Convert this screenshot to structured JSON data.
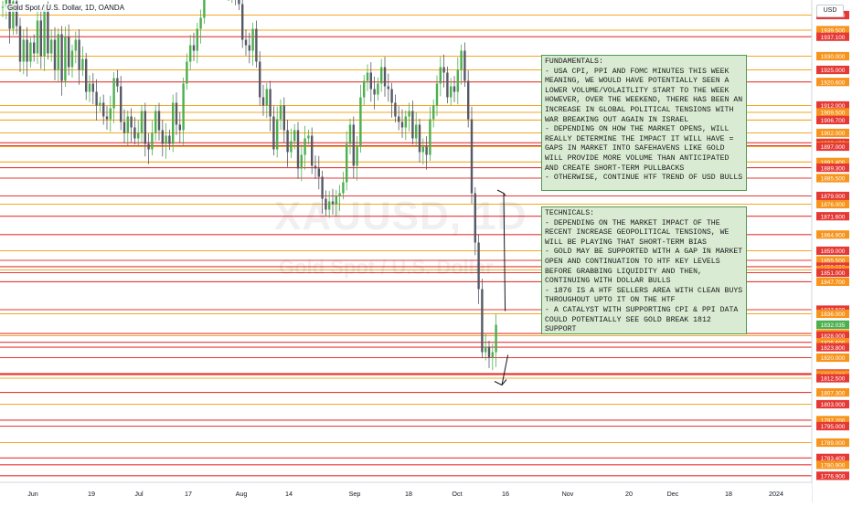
{
  "header": {
    "title": "Gold Spot / U.S. Dollar, 1D, OANDA",
    "currency": "USD"
  },
  "watermark": {
    "main": "XAUUSD, 1D",
    "sub": "Gold Spot / U.S. Dollar"
  },
  "colors": {
    "up": "#4caf50",
    "down": "#555a66",
    "level_orange": "#f5a623",
    "level_red": "#e53935",
    "price_tag_orange": "#f7941d",
    "current_price_tag": "#4caf50",
    "note_bg": "#d9ebd3",
    "note_border": "#4f9a52"
  },
  "notes": [
    {
      "lines": [
        "FUNDAMENTALS:",
        "- USA CPI, PPI AND FOMC MINUTES THIS WEEK MEANING, WE WOULD HAVE POTENTIALLY SEEN A LOWER VOLUME/VOLAITLITY START TO THE WEEK HOWEVER, OVER THE WEEKEND, THERE HAS BEEN AN INCREASE IN GLOBAL POLITICAL TENSIONS WITH WAR BREAKING OUT AGAIN IN ISRAEL",
        "- DEPENDING ON HOW THE MARKET OPENS, WILL REALLY DETERMINE THE IMPACT IT WILL HAVE = GAPS IN MARKET INTO SAFEHAVENS LIKE GOLD WILL PROVIDE MORE VOLUME THAN ANTICIPATED AND CREATE SHORT-TERM PULLBACKS",
        "- OTHERWISE, CONTINUE HTF TREND OF USD BULLS"
      ]
    },
    {
      "lines": [
        "TECHNICALS:",
        "- DEPENDING ON THE MARKET IMPACT OF THE RECENT INCREASE GEOPOLITICAL TENSIONS, WE WILL BE PLAYING THAT SHORT-TERM BIAS",
        "- GOLD MAY BE SUPPORTED WITH A GAP IN MARKET OPEN AND CONTINUATION TO HTF KEY LEVELS BEFORE GRABBING LIQUIDITY AND THEN, CONTINUING WITH DOLLAR BULLS",
        "- 1876 IS A HTF SELLERS AREA WITH CLEAN BUYS THROUGHOUT UPTO IT ON THE HTF",
        "- A CATALYST WITH SUPPORTING CPI & PPI DATA COULD POTENTIALLY SEE GOLD BREAK 1812 SUPPORT"
      ]
    }
  ],
  "chart_data": {
    "type": "candlestick",
    "title": "Gold Spot / U.S. Dollar, 1D, OANDA",
    "ylim": [
      1774.5,
      1950.5
    ],
    "y_tick_labels": [
      "1945.000",
      "1939.500",
      "1937.100",
      "1930.000",
      "1925.000",
      "1920.600",
      "1912.000",
      "1909.500",
      "1906.700",
      "1902.000",
      "1898.400",
      "1897.300",
      "1897.000",
      "1891.400",
      "1889.300",
      "1885.500",
      "1879.000",
      "1876.000",
      "1871.600",
      "1864.900",
      "1859.000",
      "1855.500",
      "1853.200",
      "1852.000",
      "1851.000",
      "1847.700",
      "1837.500",
      "1836.000",
      "1832.035",
      "1828.800",
      "1828.000",
      "1825.600",
      "1823.800",
      "1820.000",
      "1814.200",
      "1813.800",
      "1812.500",
      "1807.300",
      "1803.000",
      "1797.200",
      "1795.000",
      "1789.000",
      "1783.400",
      "1780.900",
      "1776.900"
    ],
    "current_price": 1832.035,
    "x_tick_labels": [
      "Jun",
      "19",
      "Jul",
      "17",
      "Aug",
      "14",
      "Sep",
      "18",
      "Oct",
      "16",
      "Nov",
      "20",
      "Dec",
      "18",
      "2024"
    ],
    "levels": [
      {
        "price": 1945.0,
        "color": "orange"
      },
      {
        "price": 1939.5,
        "color": "orange"
      },
      {
        "price": 1937.1,
        "color": "red"
      },
      {
        "price": 1930.0,
        "color": "orange"
      },
      {
        "price": 1925.0,
        "color": "orange"
      },
      {
        "price": 1920.6,
        "color": "red"
      },
      {
        "price": 1912.0,
        "color": "orange"
      },
      {
        "price": 1909.5,
        "color": "orange"
      },
      {
        "price": 1906.7,
        "color": "orange"
      },
      {
        "price": 1902.0,
        "color": "orange"
      },
      {
        "price": 1898.4,
        "color": "red"
      },
      {
        "price": 1897.3,
        "color": "red"
      },
      {
        "price": 1897.0,
        "color": "orange"
      },
      {
        "price": 1891.4,
        "color": "orange"
      },
      {
        "price": 1889.3,
        "color": "red"
      },
      {
        "price": 1885.5,
        "color": "red"
      },
      {
        "price": 1879.0,
        "color": "red"
      },
      {
        "price": 1876.0,
        "color": "orange"
      },
      {
        "price": 1871.6,
        "color": "red"
      },
      {
        "price": 1864.9,
        "color": "red"
      },
      {
        "price": 1859.0,
        "color": "orange"
      },
      {
        "price": 1855.5,
        "color": "red"
      },
      {
        "price": 1853.2,
        "color": "red"
      },
      {
        "price": 1852.0,
        "color": "orange"
      },
      {
        "price": 1851.0,
        "color": "red"
      },
      {
        "price": 1847.7,
        "color": "red"
      },
      {
        "price": 1837.5,
        "color": "red"
      },
      {
        "price": 1836.0,
        "color": "orange"
      },
      {
        "price": 1828.8,
        "color": "red"
      },
      {
        "price": 1828.0,
        "color": "orange"
      },
      {
        "price": 1825.6,
        "color": "red"
      },
      {
        "price": 1823.8,
        "color": "red"
      },
      {
        "price": 1820.0,
        "color": "red"
      },
      {
        "price": 1814.2,
        "color": "red"
      },
      {
        "price": 1813.8,
        "color": "red"
      },
      {
        "price": 1812.5,
        "color": "orange"
      },
      {
        "price": 1807.3,
        "color": "red"
      },
      {
        "price": 1803.0,
        "color": "orange"
      },
      {
        "price": 1797.2,
        "color": "red"
      },
      {
        "price": 1795.0,
        "color": "red"
      },
      {
        "price": 1789.0,
        "color": "orange"
      },
      {
        "price": 1783.4,
        "color": "red"
      },
      {
        "price": 1780.9,
        "color": "red"
      },
      {
        "price": 1776.9,
        "color": "red"
      }
    ],
    "closes": [
      1948,
      1952,
      1940,
      1950,
      1941,
      1928,
      1936,
      1928,
      1935,
      1931,
      1943,
      1930,
      1947,
      1931,
      1936,
      1925,
      1938,
      1921,
      1937,
      1926,
      1932,
      1936,
      1925,
      1929,
      1917,
      1920,
      1917,
      1912,
      1913,
      1908,
      1907,
      1911,
      1922,
      1919,
      1906,
      1902,
      1908,
      1904,
      1900,
      1902,
      1910,
      1898,
      1896,
      1902,
      1910,
      1903,
      1898,
      1901,
      1898,
      1913,
      1905,
      1903,
      1920,
      1928,
      1934,
      1932,
      1940,
      1944,
      1962,
      1956,
      1963,
      1972,
      1960,
      1964,
      1955,
      1954,
      1961,
      1954,
      1949,
      1936,
      1934,
      1932,
      1940,
      1928,
      1915,
      1912,
      1918,
      1908,
      1896,
      1907,
      1912,
      1903,
      1895,
      1899,
      1903,
      1889,
      1894,
      1900,
      1901,
      1890,
      1889,
      1886,
      1878,
      1874,
      1877,
      1876,
      1879,
      1880,
      1884,
      1898,
      1905,
      1890,
      1897,
      1915,
      1921,
      1924,
      1918,
      1916,
      1920,
      1926,
      1919,
      1918,
      1913,
      1908,
      1906,
      1904,
      1908,
      1910,
      1900,
      1905,
      1895,
      1897,
      1894,
      1907,
      1912,
      1920,
      1926,
      1924,
      1915,
      1919,
      1917,
      1925,
      1932,
      1921,
      1907,
      1880,
      1862,
      1845,
      1822,
      1824,
      1820,
      1822,
      1832
    ]
  }
}
